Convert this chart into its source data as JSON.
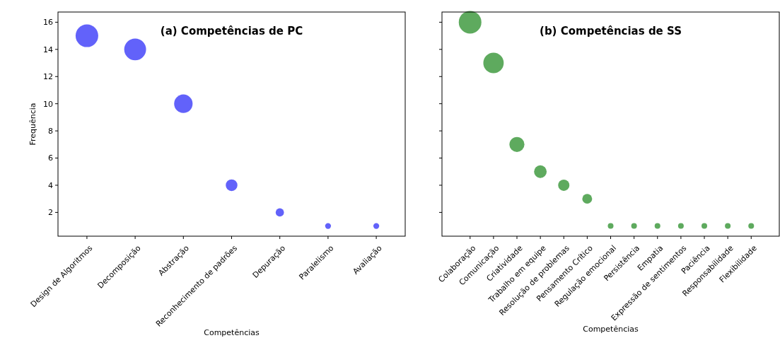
{
  "chart_data": [
    {
      "type": "bubble",
      "title": "(a) Competências de PC",
      "xlabel": "Competências",
      "ylabel": "Frequência",
      "categories": [
        "Design de Algoritmos",
        "Decomposição",
        "Abstração",
        "Reconhecimento de padrões",
        "Depuração",
        "Paralelismo",
        "Avaliação"
      ],
      "series": [
        {
          "color": "#6262fa",
          "values": [
            15,
            14,
            10,
            4,
            2,
            1,
            1
          ],
          "sizes": [
            1,
            0.933,
            0.667,
            0.267,
            0.133,
            0.067,
            0.067
          ]
        }
      ],
      "ylim": [
        0.25,
        16.75
      ],
      "yticks": [
        2,
        4,
        6,
        8,
        10,
        12,
        14,
        16
      ]
    },
    {
      "type": "bubble",
      "title": "(b) Competências de SS",
      "xlabel": "Competências",
      "categories": [
        "Colaboração",
        "Comunicação",
        "Criatividade",
        "Trabalho em equipe",
        "Resolução de problemas",
        "Pensamento Crítico",
        "Regulação emocional",
        "Persistência",
        "Empatia",
        "Expressão de sentimentos",
        "Paciência",
        "Responsabilidade",
        "Flexibilidade"
      ],
      "series": [
        {
          "color": "#5eaa5e",
          "values": [
            16,
            13,
            7,
            5,
            4,
            3,
            1,
            1,
            1,
            1,
            1,
            1,
            1
          ],
          "sizes": [
            1,
            0.8125,
            0.4375,
            0.3125,
            0.25,
            0.1875,
            0.0625,
            0.0625,
            0.0625,
            0.0625,
            0.0625,
            0.0625,
            0.0625
          ]
        }
      ],
      "ylim": [
        0.25,
        16.75
      ],
      "yticks": [
        2,
        4,
        6,
        8,
        10,
        12,
        14,
        16
      ],
      "tick_labels": "x"
    }
  ]
}
